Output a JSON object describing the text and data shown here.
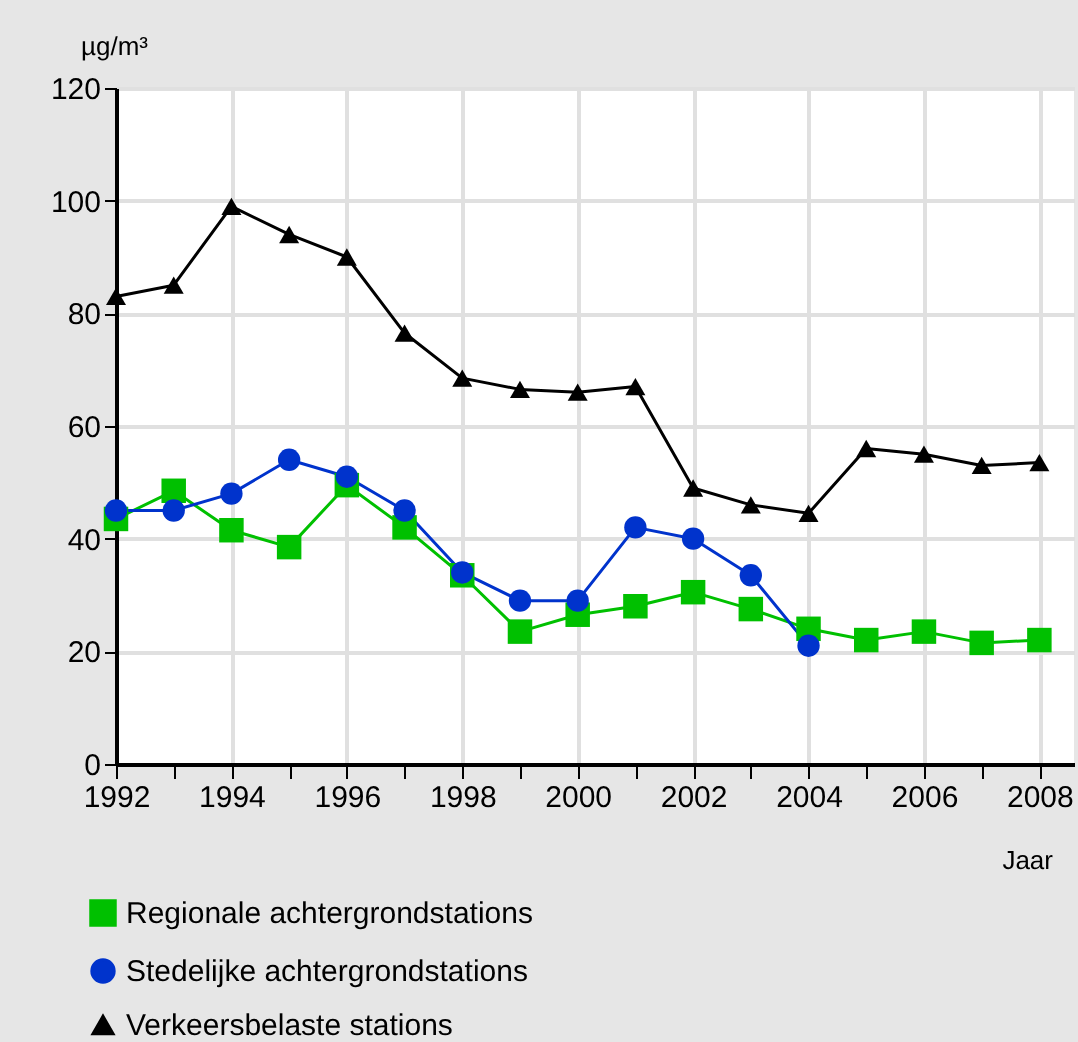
{
  "chart_data": {
    "type": "line",
    "ylabel": "µg/m³",
    "xlabel": "Jaar",
    "x": [
      1992,
      1993,
      1994,
      1995,
      1996,
      1997,
      1998,
      1999,
      2000,
      2001,
      2002,
      2003,
      2004,
      2005,
      2006,
      2007,
      2008
    ],
    "series": [
      {
        "name": "Regionale achtergrondstations",
        "color": "#00c000",
        "marker": "square",
        "values": [
          43.5,
          48.5,
          41.5,
          38.5,
          49.5,
          42,
          33.5,
          23.5,
          26.5,
          28,
          30.5,
          27.5,
          24,
          22,
          23.5,
          21.5,
          22
        ]
      },
      {
        "name": "Stedelijke achtergrondstations",
        "color": "#0033cc",
        "marker": "circle",
        "values": [
          45,
          45,
          48,
          54,
          51,
          45,
          34,
          29,
          29,
          42,
          40,
          33.5,
          21,
          null,
          null,
          null,
          null
        ]
      },
      {
        "name": "Verkeersbelaste stations",
        "color": "#000000",
        "marker": "triangle",
        "values": [
          83,
          85,
          99,
          94,
          90,
          76.5,
          68.5,
          66.5,
          66,
          67,
          49,
          46,
          44.5,
          56,
          55,
          53,
          53.5
        ]
      }
    ],
    "xlim": [
      1992,
      2008.6
    ],
    "xticks": [
      1992,
      {
        "value": 1993,
        "label": null
      },
      1994,
      {
        "value": 1995,
        "label": null
      },
      1996,
      {
        "value": 1997,
        "label": null
      },
      1998,
      {
        "value": 1999,
        "label": null
      },
      2000,
      {
        "value": 2001,
        "label": null
      },
      2002,
      {
        "value": 2003,
        "label": null
      },
      2004,
      {
        "value": 2005,
        "label": null
      },
      2006,
      {
        "value": 2007,
        "label": null
      },
      2008
    ],
    "ylim": [
      0,
      120
    ],
    "yticks": [
      0,
      20,
      40,
      60,
      80,
      100,
      120
    ],
    "grid": true,
    "legend": "bottom left",
    "line_style": "solid"
  }
}
